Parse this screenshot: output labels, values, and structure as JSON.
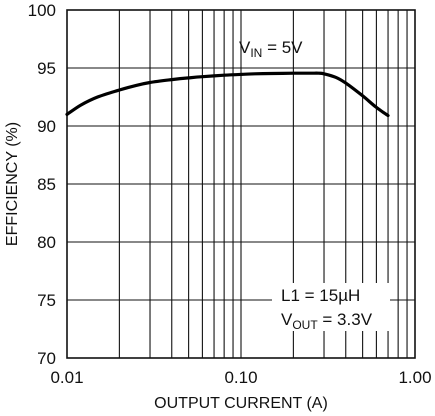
{
  "chart_data": {
    "type": "line",
    "xlabel": "OUTPUT CURRENT (A)",
    "ylabel": "EFFICIENCY (%)",
    "x_scale": "log",
    "xlim": [
      0.01,
      1.0
    ],
    "ylim": [
      70,
      100
    ],
    "grid": true,
    "x_ticks": [
      "0.01",
      "0.10",
      "1.00"
    ],
    "y_ticks": [
      "70",
      "75",
      "80",
      "85",
      "90",
      "95",
      "100"
    ],
    "annotations": {
      "vin": {
        "main": "V",
        "sub": "IN",
        "rest": " = 5V"
      },
      "l1": "L1 = 15µH",
      "vout": {
        "main": "V",
        "sub": "OUT",
        "rest": " = 3.3V"
      }
    },
    "series": [
      {
        "x": [
          0.01,
          0.012,
          0.015,
          0.02,
          0.025,
          0.03,
          0.04,
          0.05,
          0.06,
          0.08,
          0.1,
          0.12,
          0.15,
          0.2,
          0.25,
          0.28,
          0.3,
          0.35,
          0.4,
          0.5,
          0.6,
          0.7
        ],
        "values": [
          91.0,
          91.8,
          92.5,
          93.1,
          93.5,
          93.75,
          94.0,
          94.15,
          94.25,
          94.38,
          94.45,
          94.5,
          94.53,
          94.55,
          94.55,
          94.55,
          94.5,
          94.2,
          93.7,
          92.6,
          91.6,
          90.9
        ]
      }
    ]
  }
}
